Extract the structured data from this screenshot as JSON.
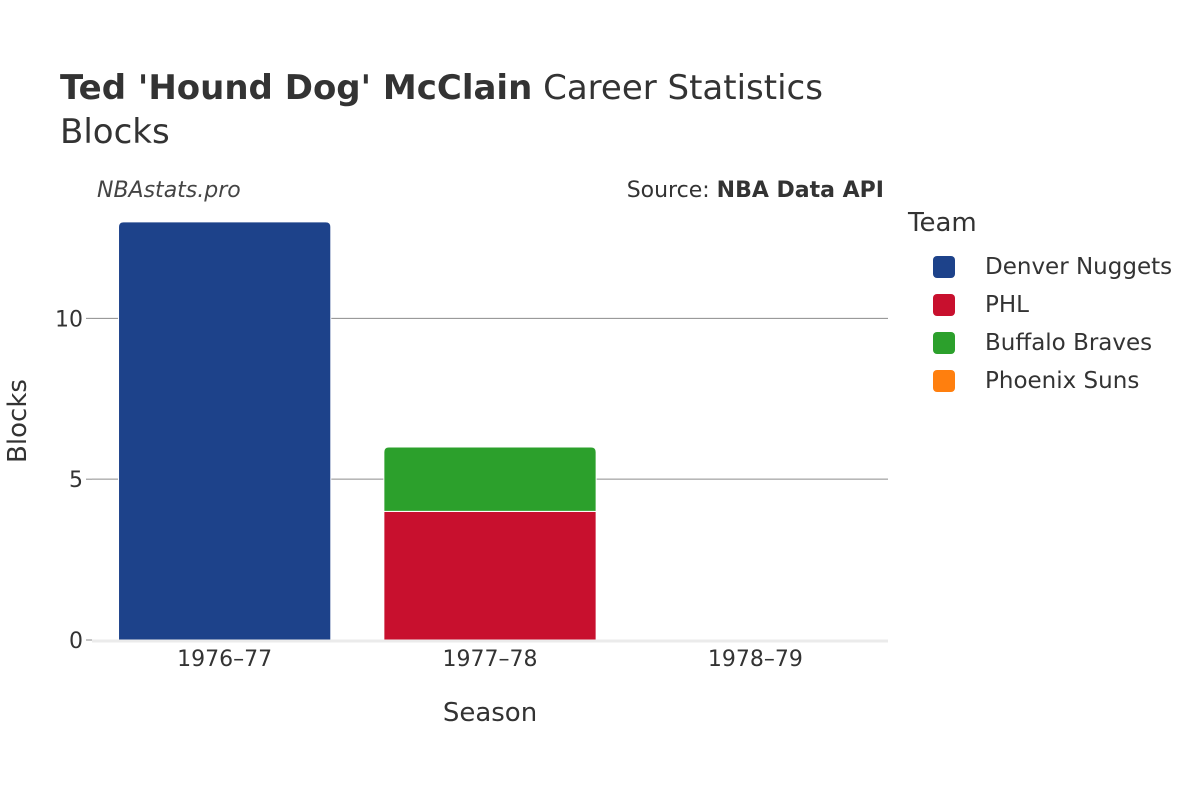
{
  "header": {
    "player": "Ted 'Hound Dog' McClain",
    "suffix": " Career Statistics",
    "stat": "Blocks"
  },
  "watermark": "NBAstats.pro",
  "source": {
    "prefix": "Source: ",
    "name": "NBA Data API"
  },
  "legend": {
    "title": "Team"
  },
  "chart_data": {
    "type": "bar",
    "stacked": true,
    "categories": [
      "1976–77",
      "1977–78",
      "1978–79"
    ],
    "series": [
      {
        "name": "Denver Nuggets",
        "color": "#1d428a",
        "values": [
          13,
          0,
          0
        ]
      },
      {
        "name": "PHL",
        "color": "#c8102e",
        "values": [
          0,
          4,
          0
        ]
      },
      {
        "name": "Buffalo Braves",
        "color": "#2ca02c",
        "values": [
          0,
          2,
          0
        ]
      },
      {
        "name": "Phoenix Suns",
        "color": "#ff7f0e",
        "values": [
          0,
          0,
          0
        ]
      }
    ],
    "xlabel": "Season",
    "ylabel": "Blocks",
    "ylim": [
      0,
      13.68
    ],
    "yticks": [
      0,
      5,
      10
    ],
    "grid": true,
    "legend_position": "right"
  }
}
